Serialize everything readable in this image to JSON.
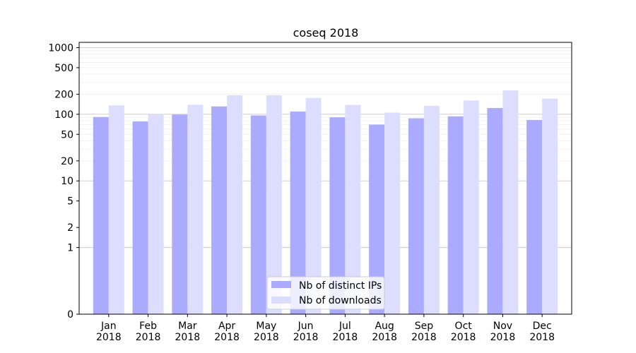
{
  "chart_data": {
    "type": "bar",
    "title": "coseq 2018",
    "xlabel": "",
    "ylabel": "",
    "yscale": "symlog",
    "ylim": [
      0,
      1200
    ],
    "yticks": [
      {
        "value": 0,
        "label": "0"
      },
      {
        "value": 1,
        "label": "1"
      },
      {
        "value": 2,
        "label": "2"
      },
      {
        "value": 5,
        "label": "5"
      },
      {
        "value": 10,
        "label": "10"
      },
      {
        "value": 20,
        "label": "20"
      },
      {
        "value": 50,
        "label": "50"
      },
      {
        "value": 100,
        "label": "100"
      },
      {
        "value": 200,
        "label": "200"
      },
      {
        "value": 500,
        "label": "500"
      },
      {
        "value": 1000,
        "label": "1000"
      }
    ],
    "grid": true,
    "legend_position": "bottom-center",
    "categories": [
      {
        "month": "Jan",
        "year": "2018"
      },
      {
        "month": "Feb",
        "year": "2018"
      },
      {
        "month": "Mar",
        "year": "2018"
      },
      {
        "month": "Apr",
        "year": "2018"
      },
      {
        "month": "May",
        "year": "2018"
      },
      {
        "month": "Jun",
        "year": "2018"
      },
      {
        "month": "Jul",
        "year": "2018"
      },
      {
        "month": "Aug",
        "year": "2018"
      },
      {
        "month": "Sep",
        "year": "2018"
      },
      {
        "month": "Oct",
        "year": "2018"
      },
      {
        "month": "Nov",
        "year": "2018"
      },
      {
        "month": "Dec",
        "year": "2018"
      }
    ],
    "series": [
      {
        "name": "Nb of distinct IPs",
        "color": "#aaaaff",
        "values": [
          91,
          78,
          99,
          131,
          96,
          110,
          90,
          70,
          87,
          93,
          124,
          82
        ]
      },
      {
        "name": "Nb of downloads",
        "color": "#ddddff",
        "values": [
          136,
          100,
          139,
          193,
          193,
          176,
          138,
          106,
          134,
          161,
          228,
          172
        ]
      }
    ]
  }
}
